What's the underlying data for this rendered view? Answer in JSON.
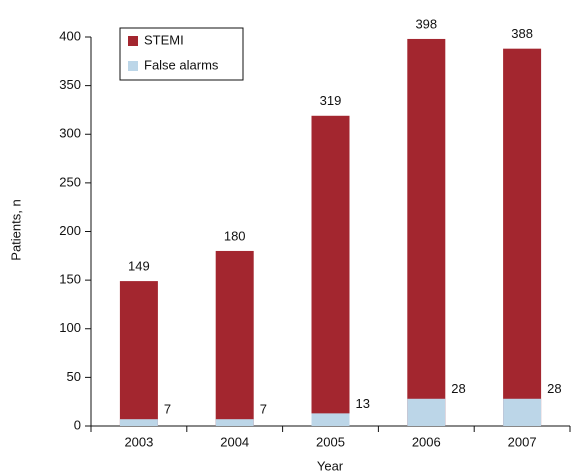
{
  "chart_data": {
    "type": "bar",
    "overlay": true,
    "x_label": "Year",
    "y_label": "Patients, n",
    "categories": [
      "2003",
      "2004",
      "2005",
      "2006",
      "2007"
    ],
    "series": [
      {
        "name": "STEMI",
        "color": "#a3262f",
        "values": [
          149,
          180,
          319,
          398,
          388
        ]
      },
      {
        "name": "False alarms",
        "color": "#bcd6e8",
        "values": [
          7,
          7,
          13,
          28,
          28
        ]
      }
    ],
    "ylim": [
      0,
      400
    ],
    "yticks": [
      0,
      50,
      100,
      150,
      200,
      250,
      300,
      350,
      400
    ],
    "legend": "upper-left"
  }
}
